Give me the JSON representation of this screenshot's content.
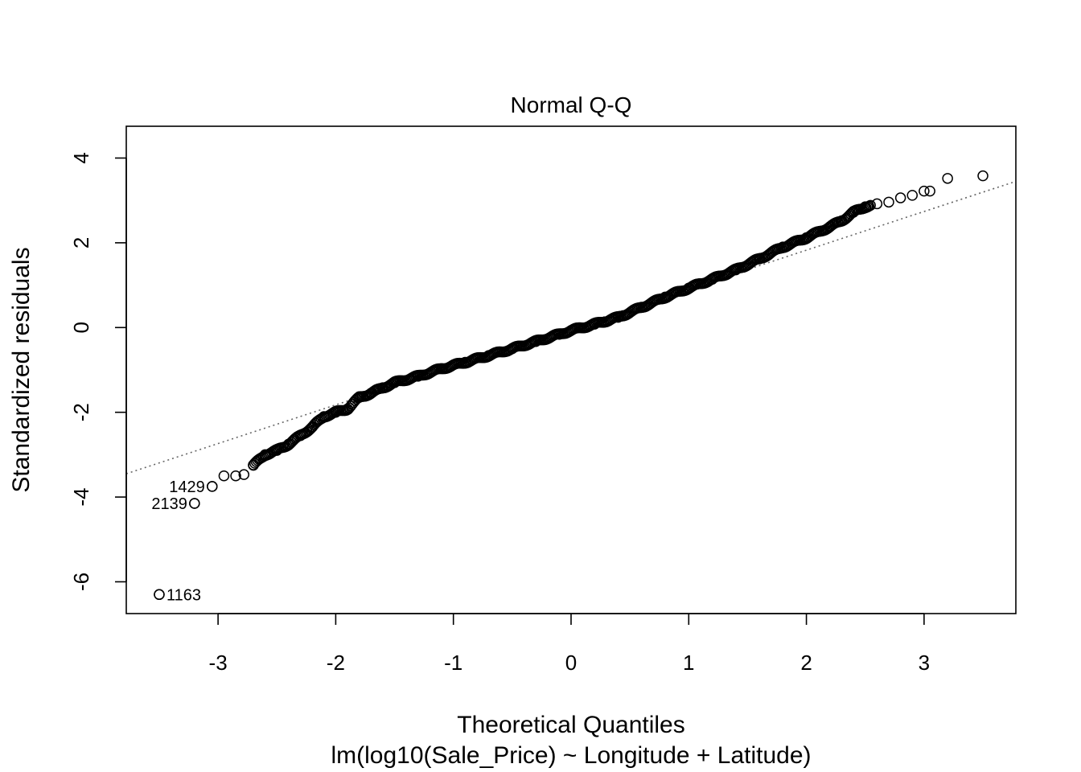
{
  "chart_data": {
    "type": "scatter",
    "title": "Normal Q-Q",
    "xlabel": "Theoretical Quantiles",
    "subtitle": "lm(log10(Sale_Price) ~ Longitude + Latitude)",
    "ylabel": "Standardized residuals",
    "xlim": [
      -3.78,
      3.78
    ],
    "ylim": [
      -6.75,
      4.75
    ],
    "x_ticks": [
      -3,
      -2,
      -1,
      0,
      1,
      2,
      3
    ],
    "x_tick_labels": [
      "-3",
      "-2",
      "-1",
      "0",
      "1",
      "2",
      "3"
    ],
    "y_ticks": [
      -6,
      -4,
      -2,
      0,
      2,
      4
    ],
    "y_tick_labels": [
      "-6",
      "-4",
      "-2",
      "0",
      "2",
      "4"
    ],
    "grid": false,
    "reference_line": {
      "style": "dotted",
      "color": "#666666",
      "points": [
        [
          -3.78,
          -3.45
        ],
        [
          3.78,
          3.45
        ]
      ]
    },
    "labeled_points": [
      {
        "label": "1163",
        "x": -3.5,
        "y": -6.3,
        "label_side": "right"
      },
      {
        "label": "2139",
        "x": -3.2,
        "y": -4.15,
        "label_side": "left"
      },
      {
        "label": "1429",
        "x": -3.05,
        "y": -3.75,
        "label_side": "left"
      }
    ],
    "quantile_curve": {
      "description": "ordered standardized residuals vs theoretical normal quantiles",
      "points": [
        [
          -3.5,
          -6.3
        ],
        [
          -3.2,
          -4.15
        ],
        [
          -3.05,
          -3.75
        ],
        [
          -2.95,
          -3.5
        ],
        [
          -2.85,
          -3.5
        ],
        [
          -2.78,
          -3.47
        ],
        [
          -2.7,
          -3.25
        ],
        [
          -2.6,
          -3.0
        ],
        [
          -2.5,
          -2.9
        ],
        [
          -2.4,
          -2.75
        ],
        [
          -2.3,
          -2.55
        ],
        [
          -2.2,
          -2.35
        ],
        [
          -2.1,
          -2.1
        ],
        [
          -2.0,
          -2.0
        ],
        [
          -1.9,
          -1.92
        ],
        [
          -1.8,
          -1.65
        ],
        [
          -1.7,
          -1.55
        ],
        [
          -1.6,
          -1.42
        ],
        [
          -1.5,
          -1.3
        ],
        [
          -1.3,
          -1.15
        ],
        [
          -1.1,
          -0.97
        ],
        [
          -0.9,
          -0.82
        ],
        [
          -0.7,
          -0.66
        ],
        [
          -0.5,
          -0.5
        ],
        [
          -0.3,
          -0.33
        ],
        [
          -0.1,
          -0.16
        ],
        [
          0.0,
          -0.07
        ],
        [
          0.2,
          0.08
        ],
        [
          0.4,
          0.24
        ],
        [
          0.6,
          0.48
        ],
        [
          0.8,
          0.72
        ],
        [
          1.0,
          0.93
        ],
        [
          1.2,
          1.14
        ],
        [
          1.4,
          1.36
        ],
        [
          1.6,
          1.62
        ],
        [
          1.8,
          1.9
        ],
        [
          2.0,
          2.12
        ],
        [
          2.2,
          2.38
        ],
        [
          2.3,
          2.52
        ],
        [
          2.4,
          2.72
        ],
        [
          2.5,
          2.85
        ],
        [
          2.6,
          2.92
        ],
        [
          2.7,
          2.96
        ],
        [
          2.8,
          3.06
        ],
        [
          2.9,
          3.12
        ],
        [
          3.0,
          3.22
        ],
        [
          3.05,
          3.22
        ],
        [
          3.2,
          3.52
        ],
        [
          3.5,
          3.58
        ]
      ]
    }
  }
}
